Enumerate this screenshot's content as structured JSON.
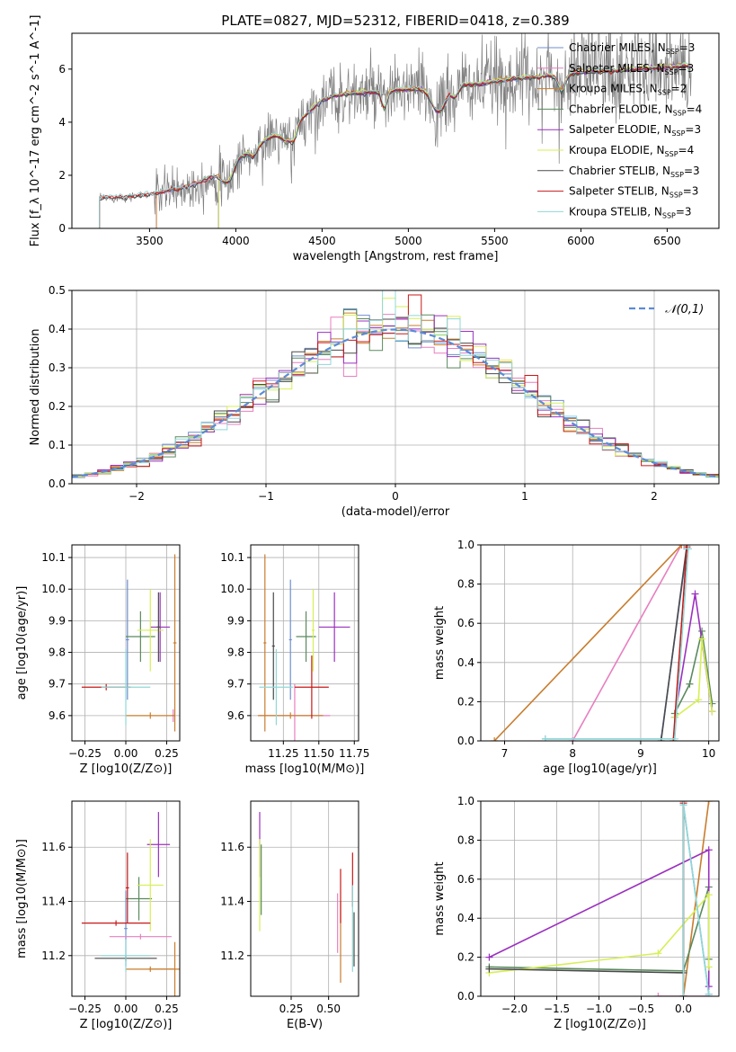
{
  "figure": {
    "title": "PLATE=0827, MJD=52312, FIBERID=0418, z=0.389"
  },
  "model_colors": {
    "Chabrier MILES": "#6f8fd0",
    "Salpeter MILES": "#e77fc0",
    "Kroupa MILES": "#c87d2e",
    "Chabrier ELODIE": "#5a8a5e",
    "Salpeter ELODIE": "#9b30c0",
    "Kroupa ELODIE": "#d6ef55",
    "Chabrier STELIB": "#4a4a4a",
    "Salpeter STELIB": "#c81818",
    "Kroupa STELIB": "#8fd8d6",
    "data": "#808080",
    "gaussian": "#5b8bd6",
    "grid": "#b0b0b0"
  },
  "chart_data": [
    {
      "id": "spectrum",
      "type": "line",
      "xlabel": "wavelength [Angstrom, rest frame]",
      "ylabel": "Flux [f_λ 10^-17 erg cm^-2 s^-1 A^-1]",
      "xlim": [
        3050,
        6800
      ],
      "ylim": [
        0,
        7.35
      ],
      "xticks": [
        3500,
        4000,
        4500,
        5000,
        5500,
        6000,
        6500
      ],
      "yticks": [
        0,
        2,
        4,
        6
      ],
      "grid": false,
      "legend_position": "top-right",
      "legend": [
        {
          "name": "Chabrier MILES",
          "n_ssp": "3"
        },
        {
          "name": "Salpeter MILES",
          "n_ssp": "3"
        },
        {
          "name": "Kroupa MILES",
          "n_ssp": "2"
        },
        {
          "name": "Chabrier ELODIE",
          "n_ssp": "4"
        },
        {
          "name": "Salpeter ELODIE",
          "n_ssp": "3"
        },
        {
          "name": "Kroupa ELODIE",
          "n_ssp": "4"
        },
        {
          "name": "Chabrier STELIB",
          "n_ssp": "3"
        },
        {
          "name": "Salpeter STELIB",
          "n_ssp": "3"
        },
        {
          "name": "Kroupa STELIB",
          "n_ssp": "3"
        }
      ],
      "continuum": [
        [
          3200,
          1.1
        ],
        [
          3400,
          1.2
        ],
        [
          3500,
          1.25
        ],
        [
          3700,
          1.5
        ],
        [
          3900,
          2.0
        ],
        [
          4000,
          2.5
        ],
        [
          4100,
          3.0
        ],
        [
          4200,
          3.4
        ],
        [
          4300,
          3.7
        ],
        [
          4400,
          4.2
        ],
        [
          4500,
          4.8
        ],
        [
          4600,
          5.0
        ],
        [
          4800,
          5.1
        ],
        [
          5000,
          5.2
        ],
        [
          5200,
          5.3
        ],
        [
          5400,
          5.4
        ],
        [
          5600,
          5.6
        ],
        [
          5800,
          5.7
        ],
        [
          6000,
          5.85
        ],
        [
          6200,
          5.9
        ],
        [
          6400,
          6.0
        ],
        [
          6640,
          6.1
        ]
      ],
      "data_range": [
        3210,
        6640
      ],
      "model_ranges": {
        "Chabrier MILES": [
          3540,
          6640
        ],
        "Salpeter MILES": [
          3540,
          6640
        ],
        "Kroupa MILES": [
          3540,
          6640
        ],
        "Chabrier ELODIE": [
          3900,
          6640
        ],
        "Salpeter ELODIE": [
          3900,
          6640
        ],
        "Kroupa ELODIE": [
          3900,
          6640
        ],
        "Chabrier STELIB": [
          3210,
          6640
        ],
        "Salpeter STELIB": [
          3210,
          6640
        ],
        "Kroupa STELIB": [
          3210,
          6640
        ]
      }
    },
    {
      "id": "residual-histogram",
      "type": "line",
      "xlabel": "(data-model)/error",
      "ylabel": "Normed distribution",
      "xlim": [
        -2.5,
        2.5
      ],
      "ylim": [
        0,
        0.5
      ],
      "xticks": [
        -2,
        -1,
        0,
        1,
        2
      ],
      "yticks": [
        0.0,
        0.1,
        0.2,
        0.3,
        0.4,
        0.5
      ],
      "grid": true,
      "legend_position": "top-right",
      "legend": [
        {
          "name": "N(0,1)"
        }
      ],
      "bin_width": 0.1
    },
    {
      "id": "age-vs-Z",
      "type": "scatter",
      "xlabel": "Z [log10(Z/Z⊙)]",
      "ylabel": "age [log10(age/yr)]",
      "xlim": [
        -0.33,
        0.33
      ],
      "ylim": [
        9.52,
        10.14
      ],
      "xticks": [
        -0.25,
        0.0,
        0.25
      ],
      "yticks": [
        9.6,
        9.7,
        9.8,
        9.9,
        10.0,
        10.1
      ],
      "grid": true,
      "points": [
        {
          "model": "Chabrier MILES",
          "x": 0.01,
          "y": 9.84,
          "xerr": 0.01,
          "yerr": 0.19
        },
        {
          "model": "Salpeter MILES",
          "x": 0.29,
          "y": 9.6,
          "xerr": 0.01,
          "yerr": 0.02
        },
        {
          "model": "Kroupa MILES",
          "x": 0.3,
          "y": 9.83,
          "xerr": 0.01,
          "yerr": 0.28
        },
        {
          "model": "Kroupa MILES",
          "x": 0.15,
          "y": 9.6,
          "xerr": 0.15,
          "yerr": 0.01
        },
        {
          "model": "Chabrier ELODIE",
          "x": 0.09,
          "y": 9.85,
          "xerr": 0.09,
          "yerr": 0.08
        },
        {
          "model": "Salpeter ELODIE",
          "x": 0.21,
          "y": 9.88,
          "xerr": 0.06,
          "yerr": 0.11
        },
        {
          "model": "Kroupa ELODIE",
          "x": 0.15,
          "y": 9.87,
          "xerr": 0.08,
          "yerr": 0.13
        },
        {
          "model": "Chabrier STELIB",
          "x": 0.2,
          "y": 9.88,
          "xerr": 0.01,
          "yerr": 0.11
        },
        {
          "model": "Salpeter STELIB",
          "x": -0.12,
          "y": 9.69,
          "xerr": 0.15,
          "yerr": 0.01
        },
        {
          "model": "Kroupa STELIB",
          "x": 0.0,
          "y": 9.69,
          "xerr": 0.15,
          "yerr": 0.12
        }
      ]
    },
    {
      "id": "age-vs-mass",
      "type": "scatter",
      "xlabel": "mass [log10(M/M⊙)]",
      "ylabel": "",
      "xlim": [
        11.02,
        11.78
      ],
      "ylim": [
        9.52,
        10.14
      ],
      "xticks": [
        11.25,
        11.5,
        11.75
      ],
      "yticks": [
        9.6,
        9.7,
        9.8,
        9.9,
        10.0,
        10.1
      ],
      "grid": true,
      "points": [
        {
          "model": "Chabrier MILES",
          "x": 11.3,
          "y": 9.84,
          "xerr": 0.01,
          "yerr": 0.19
        },
        {
          "model": "Salpeter MILES",
          "x": 11.33,
          "y": 9.6,
          "xerr": 0.25,
          "yerr": 0.1
        },
        {
          "model": "Kroupa MILES",
          "x": 11.12,
          "y": 9.83,
          "xerr": 0.01,
          "yerr": 0.28
        },
        {
          "model": "Kroupa MILES",
          "x": 11.3,
          "y": 9.6,
          "xerr": 0.23,
          "yerr": 0.01
        },
        {
          "model": "Chabrier ELODIE",
          "x": 11.41,
          "y": 9.85,
          "xerr": 0.07,
          "yerr": 0.08
        },
        {
          "model": "Salpeter ELODIE",
          "x": 11.61,
          "y": 9.88,
          "xerr": 0.11,
          "yerr": 0.11
        },
        {
          "model": "Kroupa ELODIE",
          "x": 11.46,
          "y": 9.87,
          "xerr": 0.01,
          "yerr": 0.13
        },
        {
          "model": "Chabrier STELIB",
          "x": 11.18,
          "y": 9.82,
          "xerr": 0.01,
          "yerr": 0.17
        },
        {
          "model": "Salpeter STELIB",
          "x": 11.45,
          "y": 9.69,
          "xerr": 0.12,
          "yerr": 0.1
        },
        {
          "model": "Kroupa STELIB",
          "x": 11.2,
          "y": 9.69,
          "xerr": 0.12,
          "yerr": 0.12
        }
      ]
    },
    {
      "id": "mass-weight-vs-age",
      "type": "line",
      "xlabel": "age [log10(age/yr)]",
      "ylabel": "mass weight",
      "xlim": [
        6.65,
        10.15
      ],
      "ylim": [
        0,
        1.0
      ],
      "xticks": [
        7,
        8,
        9,
        10
      ],
      "yticks": [
        0.0,
        0.2,
        0.4,
        0.6,
        0.8,
        1.0
      ],
      "grid": true,
      "series": [
        {
          "model": "Chabrier MILES",
          "x": [
            7.6,
            9.3,
            9.68
          ],
          "y": [
            0.01,
            0.01,
            0.98
          ]
        },
        {
          "model": "Salpeter MILES",
          "x": [
            8.0,
            9.6
          ],
          "y": [
            0.0,
            1.0
          ]
        },
        {
          "model": "Kroupa MILES",
          "x": [
            6.85,
            9.6
          ],
          "y": [
            0.0,
            1.0
          ]
        },
        {
          "model": "Chabrier ELODIE",
          "x": [
            9.5,
            9.72,
            9.9,
            10.05
          ],
          "y": [
            0.14,
            0.29,
            0.56,
            0.19
          ]
        },
        {
          "model": "Salpeter ELODIE",
          "x": [
            9.5,
            9.8,
            10.05
          ],
          "y": [
            0.12,
            0.75,
            0.15
          ]
        },
        {
          "model": "Kroupa ELODIE",
          "x": [
            9.5,
            9.85,
            9.9,
            10.05
          ],
          "y": [
            0.12,
            0.21,
            0.52,
            0.15
          ]
        },
        {
          "model": "Chabrier STELIB",
          "x": [
            9.3,
            9.68
          ],
          "y": [
            0.0,
            1.0
          ]
        },
        {
          "model": "Salpeter STELIB",
          "x": [
            9.48,
            9.68
          ],
          "y": [
            0.0,
            0.99
          ]
        },
        {
          "model": "Kroupa STELIB",
          "x": [
            7.6,
            9.5,
            9.7
          ],
          "y": [
            0.01,
            0.01,
            0.98
          ]
        }
      ]
    },
    {
      "id": "mass-vs-Z",
      "type": "scatter",
      "xlabel": "Z [log10(Z/Z⊙)]",
      "ylabel": "mass [log10(M/M⊙)]",
      "xlim": [
        -0.33,
        0.33
      ],
      "ylim": [
        11.05,
        11.77
      ],
      "xticks": [
        -0.25,
        0.0,
        0.25
      ],
      "yticks": [
        11.2,
        11.4,
        11.6
      ],
      "grid": true,
      "points": [
        {
          "model": "Chabrier MILES",
          "x": 0.0,
          "y": 11.3,
          "xerr": 0.01,
          "yerr": 0.14
        },
        {
          "model": "Salpeter MILES",
          "x": 0.09,
          "y": 11.27,
          "xerr": 0.19,
          "yerr": 0.01
        },
        {
          "model": "Kroupa MILES",
          "x": 0.3,
          "y": 11.15,
          "xerr": 0.16,
          "yerr": 0.1
        },
        {
          "model": "Kroupa MILES",
          "x": 0.15,
          "y": 11.15,
          "xerr": 0.15,
          "yerr": 0.01
        },
        {
          "model": "Chabrier ELODIE",
          "x": 0.08,
          "y": 11.41,
          "xerr": 0.08,
          "yerr": 0.08
        },
        {
          "model": "Salpeter ELODIE",
          "x": 0.2,
          "y": 11.61,
          "xerr": 0.07,
          "yerr": 0.12
        },
        {
          "model": "Kroupa ELODIE",
          "x": 0.15,
          "y": 11.46,
          "xerr": 0.08,
          "yerr": 0.17
        },
        {
          "model": "Chabrier STELIB",
          "x": 0.0,
          "y": 11.19,
          "xerr": 0.19,
          "yerr": 0.01
        },
        {
          "model": "Salpeter STELIB",
          "x": -0.06,
          "y": 11.32,
          "xerr": 0.21,
          "yerr": 0.01
        },
        {
          "model": "Salpeter STELIB",
          "x": 0.01,
          "y": 11.45,
          "xerr": 0.01,
          "yerr": 0.13
        },
        {
          "model": "Kroupa STELIB",
          "x": 0.0,
          "y": 11.2,
          "xerr": 0.15,
          "yerr": 0.06
        }
      ]
    },
    {
      "id": "mass-vs-EBV",
      "type": "scatter",
      "xlabel": "E(B-V)",
      "ylabel": "",
      "xlim": [
        -0.02,
        0.7
      ],
      "ylim": [
        11.05,
        11.77
      ],
      "xticks": [
        0.25,
        0.5
      ],
      "yticks": [
        11.2,
        11.4,
        11.6
      ],
      "grid": true,
      "points": [
        {
          "model": "Salpeter ELODIE",
          "x": 0.04,
          "y": 11.61,
          "xerr": 0.0,
          "yerr": 0.12
        },
        {
          "model": "Kroupa ELODIE",
          "x": 0.04,
          "y": 11.46,
          "xerr": 0.0,
          "yerr": 0.17
        },
        {
          "model": "Chabrier ELODIE",
          "x": 0.05,
          "y": 11.48,
          "xerr": 0.0,
          "yerr": 0.13
        },
        {
          "model": "Salpeter MILES",
          "x": 0.56,
          "y": 11.32,
          "xerr": 0.0,
          "yerr": 0.11
        },
        {
          "model": "Kroupa MILES",
          "x": 0.58,
          "y": 11.25,
          "xerr": 0.0,
          "yerr": 0.15
        },
        {
          "model": "Salpeter STELIB",
          "x": 0.58,
          "y": 11.42,
          "xerr": 0.0,
          "yerr": 0.1
        },
        {
          "model": "Salpeter STELIB",
          "x": 0.66,
          "y": 11.48,
          "xerr": 0.0,
          "yerr": 0.1
        },
        {
          "model": "Kroupa STELIB",
          "x": 0.66,
          "y": 11.3,
          "xerr": 0.0,
          "yerr": 0.16
        },
        {
          "model": "Chabrier STELIB",
          "x": 0.67,
          "y": 11.26,
          "xerr": 0.0,
          "yerr": 0.1
        }
      ]
    },
    {
      "id": "mass-weight-vs-Z",
      "type": "line",
      "xlabel": "Z [log10(Z/Z⊙)]",
      "ylabel": "mass weight",
      "xlim": [
        -2.4,
        0.42
      ],
      "ylim": [
        0,
        1.0
      ],
      "xticks": [
        -2.0,
        -1.5,
        -1.0,
        -0.5,
        0.0
      ],
      "yticks": [
        0.0,
        0.2,
        0.4,
        0.6,
        0.8,
        1.0
      ],
      "grid": true,
      "series": [
        {
          "model": "Chabrier MILES",
          "x": [
            0.0,
            0.0,
            0.3
          ],
          "y": [
            0.0,
            0.98,
            0.01
          ]
        },
        {
          "model": "Salpeter MILES",
          "x": [
            -0.3,
            0.3
          ],
          "y": [
            0.0,
            0.0
          ]
        },
        {
          "model": "Kroupa MILES",
          "x": [
            0.0,
            0.3
          ],
          "y": [
            0.0,
            1.0
          ]
        },
        {
          "model": "Chabrier ELODIE",
          "x": [
            -2.3,
            0.0,
            0.3,
            0.3
          ],
          "y": [
            0.15,
            0.13,
            0.56,
            0.19
          ]
        },
        {
          "model": "Salpeter ELODIE",
          "x": [
            -2.3,
            0.3,
            0.3
          ],
          "y": [
            0.2,
            0.75,
            0.05
          ]
        },
        {
          "model": "Kroupa ELODIE",
          "x": [
            -2.3,
            -0.3,
            0.3,
            0.3
          ],
          "y": [
            0.12,
            0.22,
            0.52,
            0.15
          ]
        },
        {
          "model": "Chabrier STELIB",
          "x": [
            -2.3,
            0.0,
            0.0
          ],
          "y": [
            0.14,
            0.12,
            1.0
          ]
        },
        {
          "model": "Salpeter STELIB",
          "x": [
            0.0,
            0.0
          ],
          "y": [
            0.0,
            0.99
          ]
        },
        {
          "model": "Kroupa STELIB",
          "x": [
            0.0,
            0.0,
            0.3
          ],
          "y": [
            0.0,
            0.98,
            0.01
          ]
        }
      ]
    }
  ]
}
